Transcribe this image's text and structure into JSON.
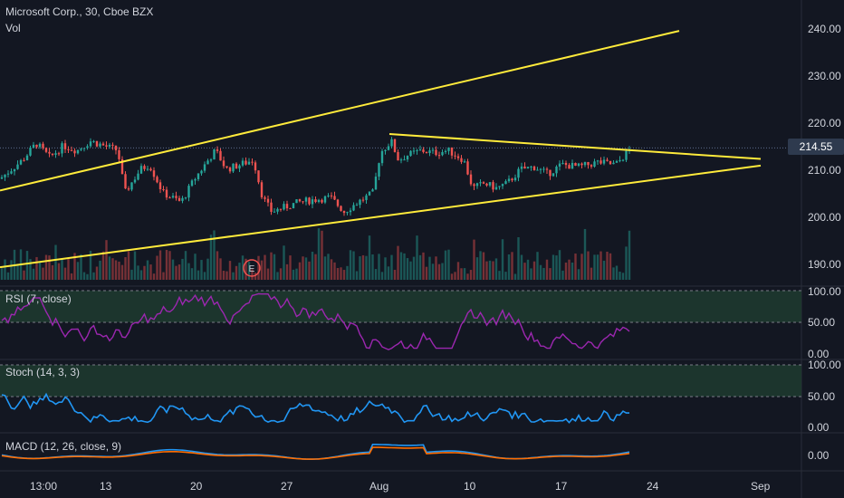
{
  "header": {
    "symbol": "Microsoft Corp., 30, Cboe BZX",
    "vol_label": "Vol"
  },
  "price_axis": {
    "ticks": [
      "240.00",
      "230.00",
      "220.00",
      "210.00",
      "200.00",
      "190.00"
    ],
    "last_price": "214.55"
  },
  "rsi": {
    "title": "RSI (7, close)",
    "ticks": [
      "100.00",
      "50.00",
      "0.00"
    ]
  },
  "stoch": {
    "title": "Stoch (14, 3, 3)",
    "ticks": [
      "100.00",
      "50.00",
      "0.00"
    ]
  },
  "macd": {
    "title": "MACD (12, 26, close, 9)",
    "ticks": [
      "0.00"
    ]
  },
  "time_axis": {
    "labels": [
      "13:00",
      "13",
      "20",
      "27",
      "Aug",
      "10",
      "17",
      "24",
      "Sep"
    ]
  },
  "earnings_marker": "E",
  "colors": {
    "background": "#131722",
    "up": "#26a69a",
    "down": "#ef5350",
    "trendline": "#ffeb3b",
    "rsi": "#9c27b0",
    "stoch": "#2196f3",
    "macd_signal": "#ff6d00",
    "band_fill": "#1e3b2f"
  },
  "chart_data": {
    "type": "candlestick",
    "title": "Microsoft Corp., 30, Cboe BZX",
    "ylim": [
      186,
      243
    ],
    "x_labels": [
      "13:00",
      "13",
      "20",
      "27",
      "Aug",
      "10",
      "17",
      "24",
      "Sep"
    ],
    "last_price": 214.55,
    "price_keyframes": [
      [
        0,
        208
      ],
      [
        25,
        212
      ],
      [
        40,
        215.5
      ],
      [
        55,
        212.5
      ],
      [
        70,
        215
      ],
      [
        85,
        214
      ],
      [
        100,
        216
      ],
      [
        115,
        215
      ],
      [
        130,
        214
      ],
      [
        138,
        205
      ],
      [
        155,
        210
      ],
      [
        165,
        211
      ],
      [
        180,
        205
      ],
      [
        200,
        203
      ],
      [
        215,
        208
      ],
      [
        230,
        212
      ],
      [
        238,
        214
      ],
      [
        250,
        210
      ],
      [
        265,
        211
      ],
      [
        280,
        212
      ],
      [
        290,
        204
      ],
      [
        300,
        201
      ],
      [
        315,
        202
      ],
      [
        330,
        203
      ],
      [
        345,
        203.5
      ],
      [
        365,
        204
      ],
      [
        380,
        201
      ],
      [
        395,
        203
      ],
      [
        412,
        205
      ],
      [
        420,
        213.5
      ],
      [
        432,
        216
      ],
      [
        440,
        212
      ],
      [
        450,
        213
      ],
      [
        465,
        214
      ],
      [
        480,
        213.5
      ],
      [
        495,
        214
      ],
      [
        512,
        212
      ],
      [
        522,
        206
      ],
      [
        535,
        207
      ],
      [
        548,
        206
      ],
      [
        560,
        207
      ],
      [
        575,
        210
      ],
      [
        590,
        210.5
      ],
      [
        605,
        209
      ],
      [
        620,
        211
      ],
      [
        640,
        210.5
      ],
      [
        660,
        211.5
      ],
      [
        680,
        211
      ],
      [
        690,
        213
      ],
      [
        697,
        214.55
      ]
    ],
    "trendlines": [
      {
        "from": [
          0,
          205.5
        ],
        "to": [
          750,
          239.4
        ]
      },
      {
        "from": [
          0,
          189.2
        ],
        "to": [
          840,
          210.8
        ]
      },
      {
        "from": [
          430,
          217.5
        ],
        "to": [
          840,
          212.2
        ]
      }
    ],
    "earnings_date_label": "E",
    "rsi_range": [
      0,
      100
    ],
    "rsi_band": [
      50,
      100
    ],
    "stoch_range": [
      0,
      100
    ],
    "stoch_band": [
      50,
      100
    ],
    "macd_zero": 0
  }
}
